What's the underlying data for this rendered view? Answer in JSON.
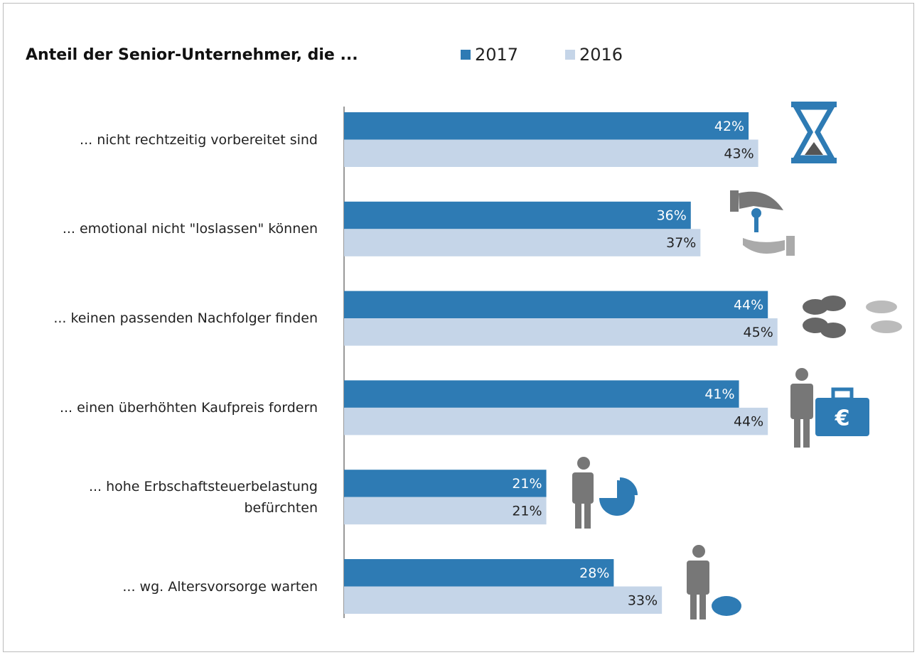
{
  "chart_data": {
    "type": "bar",
    "orientation": "horizontal",
    "title": "Anteil der Senior-Unternehmer, die ...",
    "categories": [
      "... nicht rechtzeitig vorbereitet sind",
      "... emotional nicht \"loslassen\" können",
      "... keinen passenden Nachfolger finden",
      "... einen überhöhten Kaufpreis fordern",
      "... hohe Erbschaftsteuerbelastung\nbefürchten",
      "... wg. Altersvorsorge warten"
    ],
    "series": [
      {
        "name": "2017",
        "color": "#2e7bb4",
        "values": [
          42,
          36,
          44,
          41,
          21,
          28
        ],
        "value_labels": [
          "42%",
          "36%",
          "44%",
          "41%",
          "21%",
          "28%"
        ]
      },
      {
        "name": "2016",
        "color": "#c5d5e8",
        "values": [
          43,
          37,
          45,
          44,
          21,
          33
        ],
        "value_labels": [
          "43%",
          "37%",
          "45%",
          "44%",
          "21%",
          "33%"
        ]
      }
    ],
    "legend": "top"
  }
}
